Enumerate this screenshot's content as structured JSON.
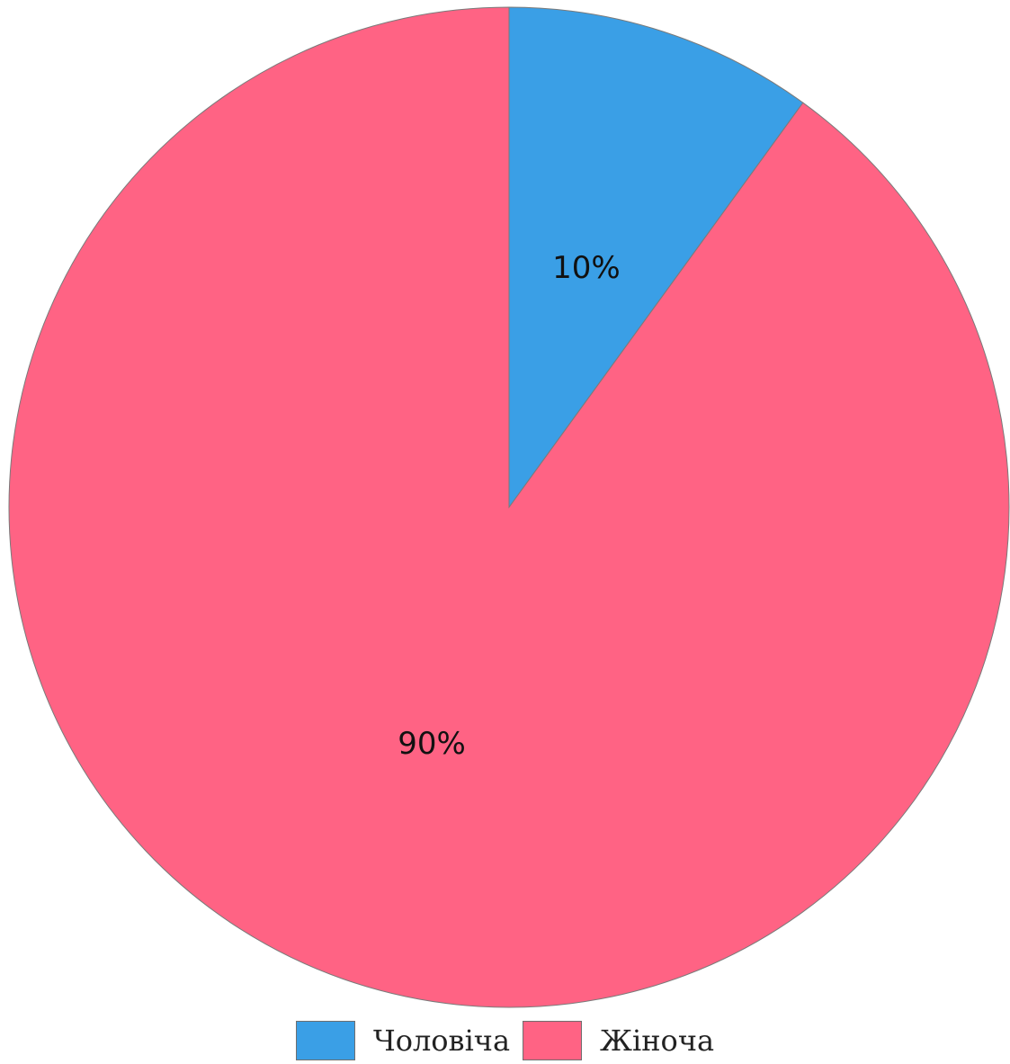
{
  "chart_data": {
    "type": "pie",
    "start_angle_deg": 0,
    "direction": "clockwise",
    "slices": [
      {
        "label": "Чоловіча",
        "value": 10,
        "display": "10%",
        "color": "#3A9FE6"
      },
      {
        "label": "Жіноча",
        "value": 90,
        "display": "90%",
        "color": "#FF6384"
      }
    ],
    "legend": {
      "position": "bottom",
      "items": [
        "Чоловіча",
        "Жіноча"
      ]
    }
  }
}
